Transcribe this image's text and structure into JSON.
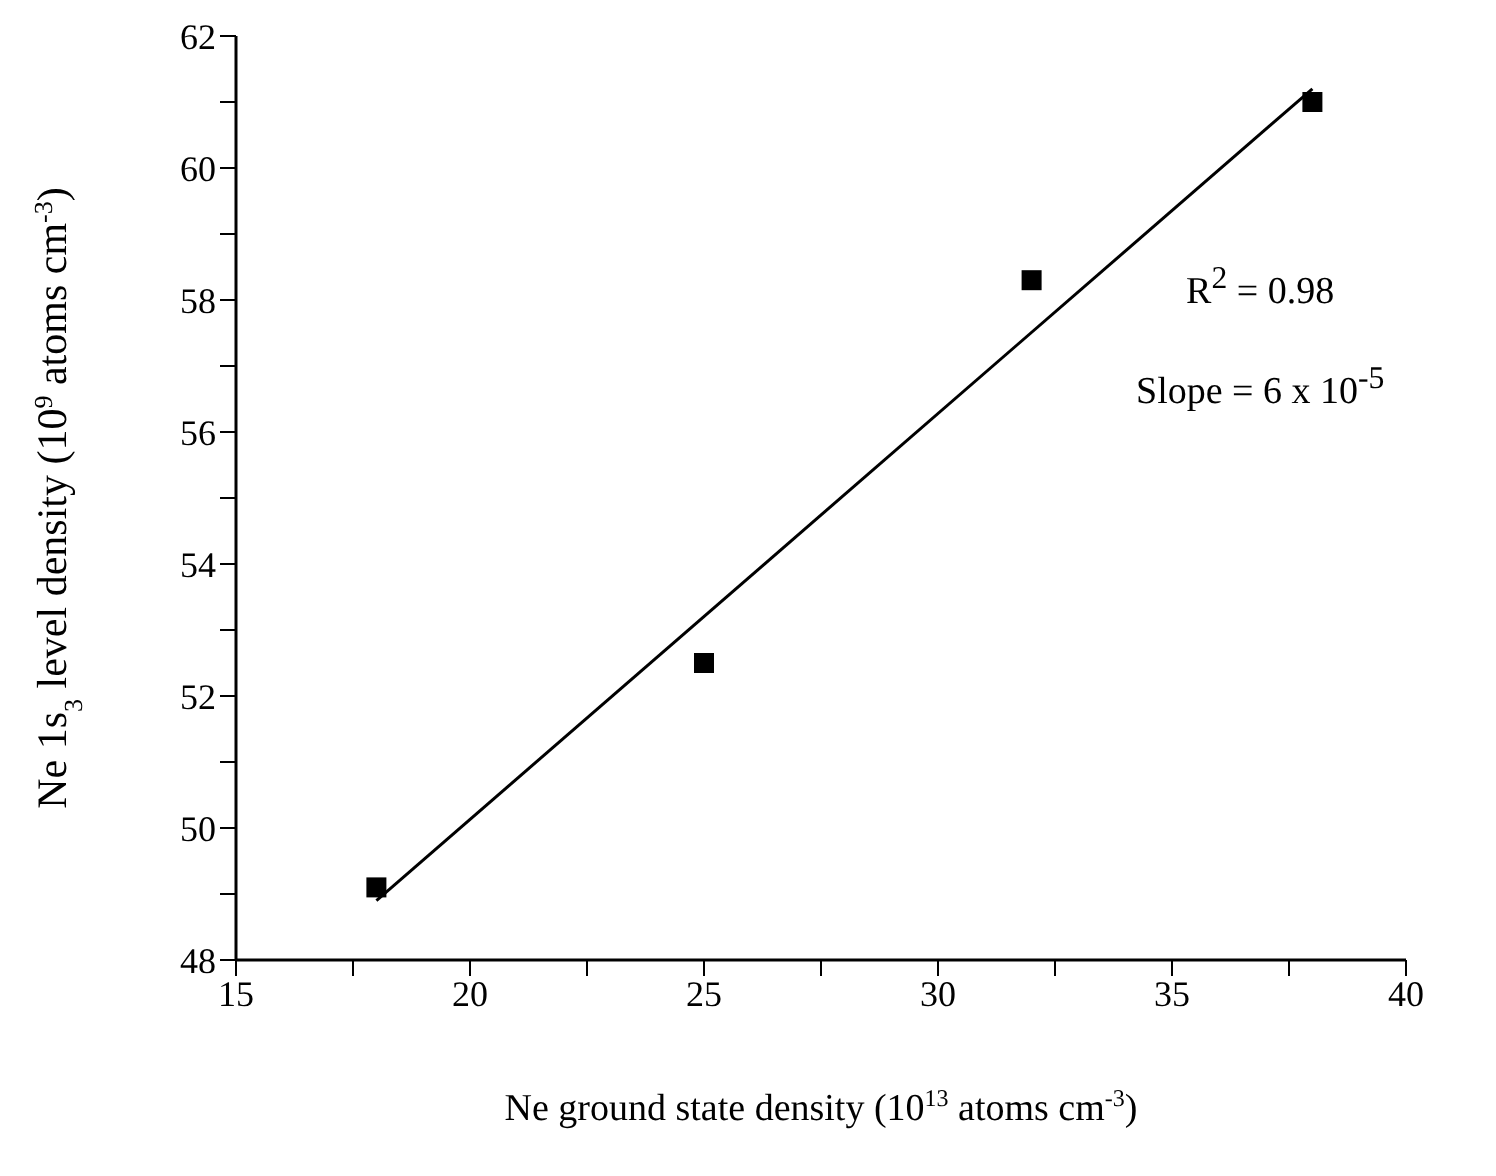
{
  "chart_data": {
    "type": "scatter",
    "xlabel": "Ne ground state density (10$^{13}$ atoms cm$^{-3}$)",
    "ylabel": "Ne 1s$_{3}$ level density (10$^{9}$ atoms cm$^{-3}$)",
    "annotations": [
      "R$^{2}$ = 0.98",
      "Slope = 6 x 10$^{-5}$"
    ],
    "series": [
      {
        "marker": "square",
        "color": "#000000",
        "x": [
          18,
          25,
          32,
          38
        ],
        "values": [
          49.1,
          52.5,
          58.3,
          61.0
        ]
      },
      {
        "type": "line",
        "marker": "none",
        "color": "#000000",
        "x": [
          18,
          38
        ],
        "values": [
          48.9,
          61.2
        ]
      }
    ],
    "xlim": [
      15,
      40
    ],
    "xticks": [
      15,
      {
        "value": 17.5,
        "label": null
      },
      20,
      {
        "value": 22.5,
        "label": null
      },
      25,
      {
        "value": 27.5,
        "label": null
      },
      30,
      {
        "value": 32.5,
        "label": null
      },
      35,
      {
        "value": 37.5,
        "label": null
      },
      40
    ],
    "ylim": [
      48,
      62
    ],
    "yticks": [
      48,
      {
        "value": 49,
        "label": null
      },
      50,
      {
        "value": 51,
        "label": null
      },
      52,
      {
        "value": 53,
        "label": null
      },
      54,
      {
        "value": 55,
        "label": null
      },
      56,
      {
        "value": 57,
        "label": null
      },
      58,
      {
        "value": 59,
        "label": null
      },
      60,
      {
        "value": 61,
        "label": null
      },
      62
    ],
    "grid": false,
    "legend": false
  }
}
